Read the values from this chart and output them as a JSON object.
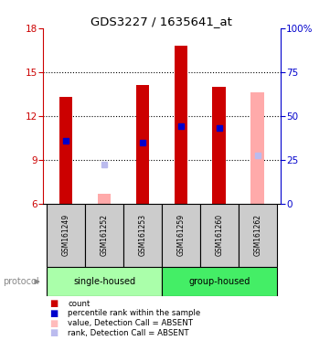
{
  "title": "GDS3227 / 1635641_at",
  "samples": [
    "GSM161249",
    "GSM161252",
    "GSM161253",
    "GSM161259",
    "GSM161260",
    "GSM161262"
  ],
  "bar_bottoms": [
    6,
    6,
    6,
    6,
    6,
    6
  ],
  "bar_heights": [
    7.3,
    0.65,
    8.1,
    10.8,
    8.0,
    7.6
  ],
  "bar_colors": [
    "#cc0000",
    "#ffaaaa",
    "#cc0000",
    "#cc0000",
    "#cc0000",
    "#ffaaaa"
  ],
  "blue_squares_y": [
    10.3,
    null,
    10.2,
    11.3,
    11.2,
    null
  ],
  "absent_rank_y": [
    null,
    8.7,
    null,
    null,
    null,
    9.3
  ],
  "ylim_left": [
    6,
    18
  ],
  "ylim_right": [
    0,
    100
  ],
  "yticks_left": [
    6,
    9,
    12,
    15,
    18
  ],
  "yticks_right": [
    0,
    25,
    50,
    75,
    100
  ],
  "ytick_labels_right": [
    "0",
    "25",
    "50",
    "75",
    "100%"
  ],
  "group_colors": [
    "#aaffaa",
    "#44ee66"
  ],
  "group_ranges": [
    [
      -0.5,
      2.5
    ],
    [
      2.5,
      5.5
    ]
  ],
  "group_labels": [
    "single-housed",
    "group-housed"
  ],
  "legend_colors": [
    "#cc0000",
    "#0000cc",
    "#ffbbbb",
    "#bbbbee"
  ],
  "legend_labels": [
    "count",
    "percentile rank within the sample",
    "value, Detection Call = ABSENT",
    "rank, Detection Call = ABSENT"
  ],
  "background_color": "#ffffff",
  "left_axis_color": "#cc0000",
  "right_axis_color": "#0000cc",
  "sample_box_color": "#cccccc",
  "bar_width": 0.35
}
